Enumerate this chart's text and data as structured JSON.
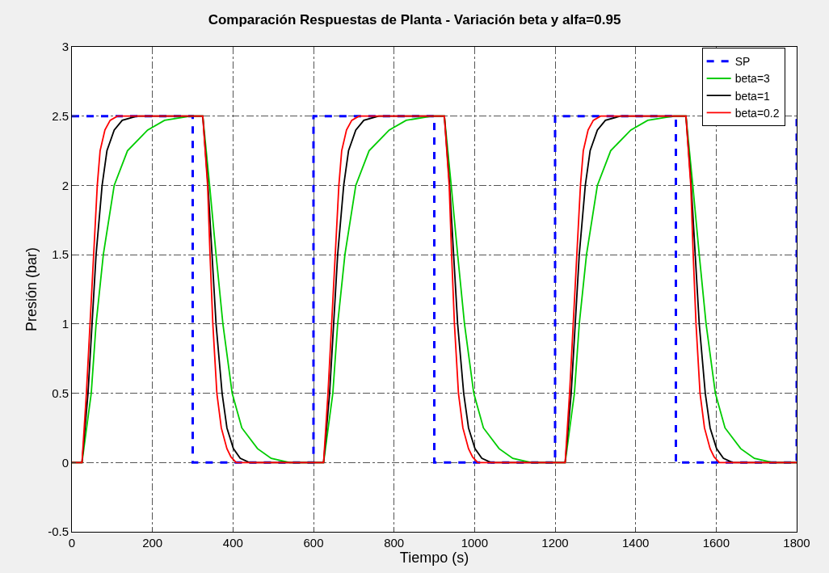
{
  "chart_data": {
    "type": "line",
    "title": "Comparación Respuestas de Planta - Variación beta y alfa=0.95",
    "xlabel": "Tiempo (s)",
    "ylabel": "Presión (bar)",
    "xlim": [
      0,
      1800
    ],
    "xticks": [
      0,
      200,
      400,
      600,
      800,
      1000,
      1200,
      1400,
      1600,
      1800
    ],
    "ylim": [
      -0.5,
      3
    ],
    "yticks": [
      -0.5,
      0,
      0.5,
      1,
      1.5,
      2,
      2.5,
      3
    ],
    "grid": true,
    "legend": "top right",
    "line_style": "solid",
    "marker": "none",
    "series": [
      {
        "name": "SP",
        "type": "step",
        "line_style": "dashed",
        "color": "#0000ff",
        "x": [
          0,
          300,
          600,
          900,
          1200,
          1500,
          1800
        ],
        "values": [
          2.5,
          0,
          2.5,
          0,
          2.5,
          0,
          2.5
        ]
      },
      {
        "name": "beta=3",
        "color": "#00cc00",
        "x": [
          0,
          25,
          48,
          60,
          78,
          105,
          138,
          188,
          230,
          295,
          325,
          342,
          358,
          375,
          398,
          422,
          461,
          495,
          541,
          625,
          648,
          660,
          678,
          705,
          738,
          788,
          830,
          895,
          925,
          942,
          958,
          975,
          998,
          1022,
          1061,
          1095,
          1141,
          1225,
          1248,
          1260,
          1278,
          1305,
          1338,
          1388,
          1430,
          1495,
          1525,
          1542,
          1558,
          1575,
          1598,
          1622,
          1661,
          1695,
          1741,
          1800
        ],
        "values": [
          0,
          0,
          0.5,
          1,
          1.5,
          2,
          2.25,
          2.4,
          2.47,
          2.5,
          2.5,
          2,
          1.5,
          1,
          0.5,
          0.25,
          0.1,
          0.03,
          0,
          0,
          0.5,
          1,
          1.5,
          2,
          2.25,
          2.4,
          2.47,
          2.5,
          2.5,
          2,
          1.5,
          1,
          0.5,
          0.25,
          0.1,
          0.03,
          0,
          0,
          0.5,
          1,
          1.5,
          2,
          2.25,
          2.4,
          2.47,
          2.5,
          2.5,
          2,
          1.5,
          1,
          0.5,
          0.25,
          0.1,
          0.03,
          0,
          0
        ]
      },
      {
        "name": "beta=1",
        "color": "#000000",
        "x": [
          0,
          25,
          40,
          50,
          60,
          75,
          87,
          105,
          125,
          162,
          325,
          338,
          348,
          358,
          373,
          385,
          401,
          418,
          441,
          625,
          640,
          650,
          660,
          675,
          687,
          705,
          725,
          762,
          925,
          938,
          948,
          958,
          973,
          985,
          1001,
          1018,
          1041,
          1225,
          1240,
          1250,
          1260,
          1275,
          1287,
          1305,
          1325,
          1362,
          1525,
          1538,
          1548,
          1558,
          1573,
          1585,
          1601,
          1618,
          1641,
          1800
        ],
        "values": [
          0,
          0,
          0.5,
          1,
          1.5,
          2,
          2.25,
          2.4,
          2.47,
          2.5,
          2.5,
          2,
          1.5,
          1,
          0.5,
          0.25,
          0.1,
          0.03,
          0,
          0,
          0.5,
          1,
          1.5,
          2,
          2.25,
          2.4,
          2.47,
          2.5,
          2.5,
          2,
          1.5,
          1,
          0.5,
          0.25,
          0.1,
          0.03,
          0,
          0,
          0.5,
          1,
          1.5,
          2,
          2.25,
          2.4,
          2.47,
          2.5,
          2.5,
          2,
          1.5,
          1,
          0.5,
          0.25,
          0.1,
          0.03,
          0,
          0
        ]
      },
      {
        "name": "beta=0.2",
        "color": "#ff0000",
        "x": [
          0,
          25,
          36,
          45,
          54,
          63,
          70,
          82,
          95,
          113,
          325,
          337,
          343,
          350,
          360,
          371,
          385,
          395,
          408,
          625,
          636,
          645,
          654,
          663,
          670,
          682,
          695,
          713,
          925,
          937,
          943,
          950,
          960,
          971,
          985,
          995,
          1008,
          1225,
          1236,
          1245,
          1254,
          1263,
          1270,
          1282,
          1295,
          1313,
          1525,
          1537,
          1543,
          1550,
          1560,
          1571,
          1585,
          1595,
          1608,
          1800
        ],
        "values": [
          0,
          0,
          0.5,
          1,
          1.5,
          2,
          2.25,
          2.4,
          2.47,
          2.5,
          2.5,
          2,
          1.5,
          1,
          0.5,
          0.25,
          0.1,
          0.04,
          0,
          0,
          0.5,
          1,
          1.5,
          2,
          2.25,
          2.4,
          2.47,
          2.5,
          2.5,
          2,
          1.5,
          1,
          0.5,
          0.25,
          0.1,
          0.04,
          0,
          0,
          0.5,
          1,
          1.5,
          2,
          2.25,
          2.4,
          2.47,
          2.5,
          2.5,
          2,
          1.5,
          1,
          0.5,
          0.25,
          0.1,
          0.04,
          0,
          0
        ]
      }
    ]
  }
}
